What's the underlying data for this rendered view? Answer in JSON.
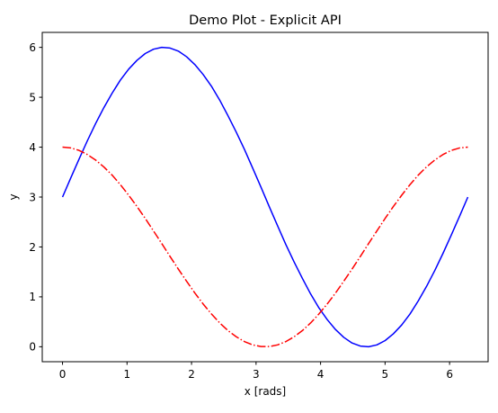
{
  "chart_data": {
    "type": "line",
    "title": "Demo Plot - Explicit API",
    "xlabel": "x [rads]",
    "ylabel": "y",
    "xlim": [
      -0.3142,
      6.5973
    ],
    "ylim": [
      -0.3,
      6.3
    ],
    "xticks": [
      0,
      1,
      2,
      3,
      4,
      5,
      6
    ],
    "yticks": [
      0,
      1,
      2,
      3,
      4,
      5,
      6
    ],
    "grid": false,
    "legend": "none",
    "x": [
      0.0,
      0.1282,
      0.2565,
      0.3847,
      0.5129,
      0.6411,
      0.7694,
      0.8976,
      1.0258,
      1.1541,
      1.2823,
      1.4105,
      1.5387,
      1.667,
      1.7952,
      1.9234,
      2.0517,
      2.1799,
      2.3081,
      2.4363,
      2.5646,
      2.6928,
      2.821,
      2.9493,
      3.0775,
      3.2057,
      3.3339,
      3.4622,
      3.5904,
      3.7186,
      3.8468,
      3.9751,
      4.1033,
      4.2315,
      4.3598,
      4.488,
      4.6162,
      4.7444,
      4.8727,
      5.0009,
      5.1291,
      5.2574,
      5.3856,
      5.5138,
      5.642,
      5.7703,
      5.8985,
      6.0267,
      6.155,
      6.2832
    ],
    "series": [
      {
        "color": "#0000ff",
        "linestyle": "solid",
        "values": [
          3.0,
          3.384,
          3.761,
          4.127,
          4.473,
          4.793,
          5.083,
          5.345,
          5.564,
          5.74,
          5.876,
          5.963,
          6.0,
          5.986,
          5.925,
          5.812,
          5.655,
          5.456,
          5.222,
          4.944,
          4.631,
          4.302,
          3.952,
          3.576,
          3.195,
          2.805,
          2.424,
          2.048,
          1.698,
          1.369,
          1.056,
          0.778,
          0.544,
          0.345,
          0.188,
          0.075,
          0.014,
          0.0,
          0.037,
          0.124,
          0.26,
          0.436,
          0.655,
          0.917,
          1.207,
          1.527,
          1.873,
          2.239,
          2.616,
          3.0
        ]
      },
      {
        "color": "#ff0000",
        "linestyle": "dashdot",
        "values": [
          4.0,
          3.984,
          3.935,
          3.853,
          3.742,
          3.603,
          3.439,
          3.248,
          3.036,
          2.811,
          2.572,
          2.32,
          2.068,
          1.809,
          1.556,
          1.313,
          1.076,
          0.857,
          0.658,
          0.478,
          0.324,
          0.2,
          0.103,
          0.037,
          0.004,
          0.004,
          0.037,
          0.103,
          0.2,
          0.324,
          0.478,
          0.658,
          0.857,
          1.076,
          1.313,
          1.556,
          1.809,
          2.068,
          2.32,
          2.572,
          2.811,
          3.036,
          3.248,
          3.439,
          3.603,
          3.742,
          3.853,
          3.935,
          3.984,
          4.0
        ]
      }
    ]
  }
}
